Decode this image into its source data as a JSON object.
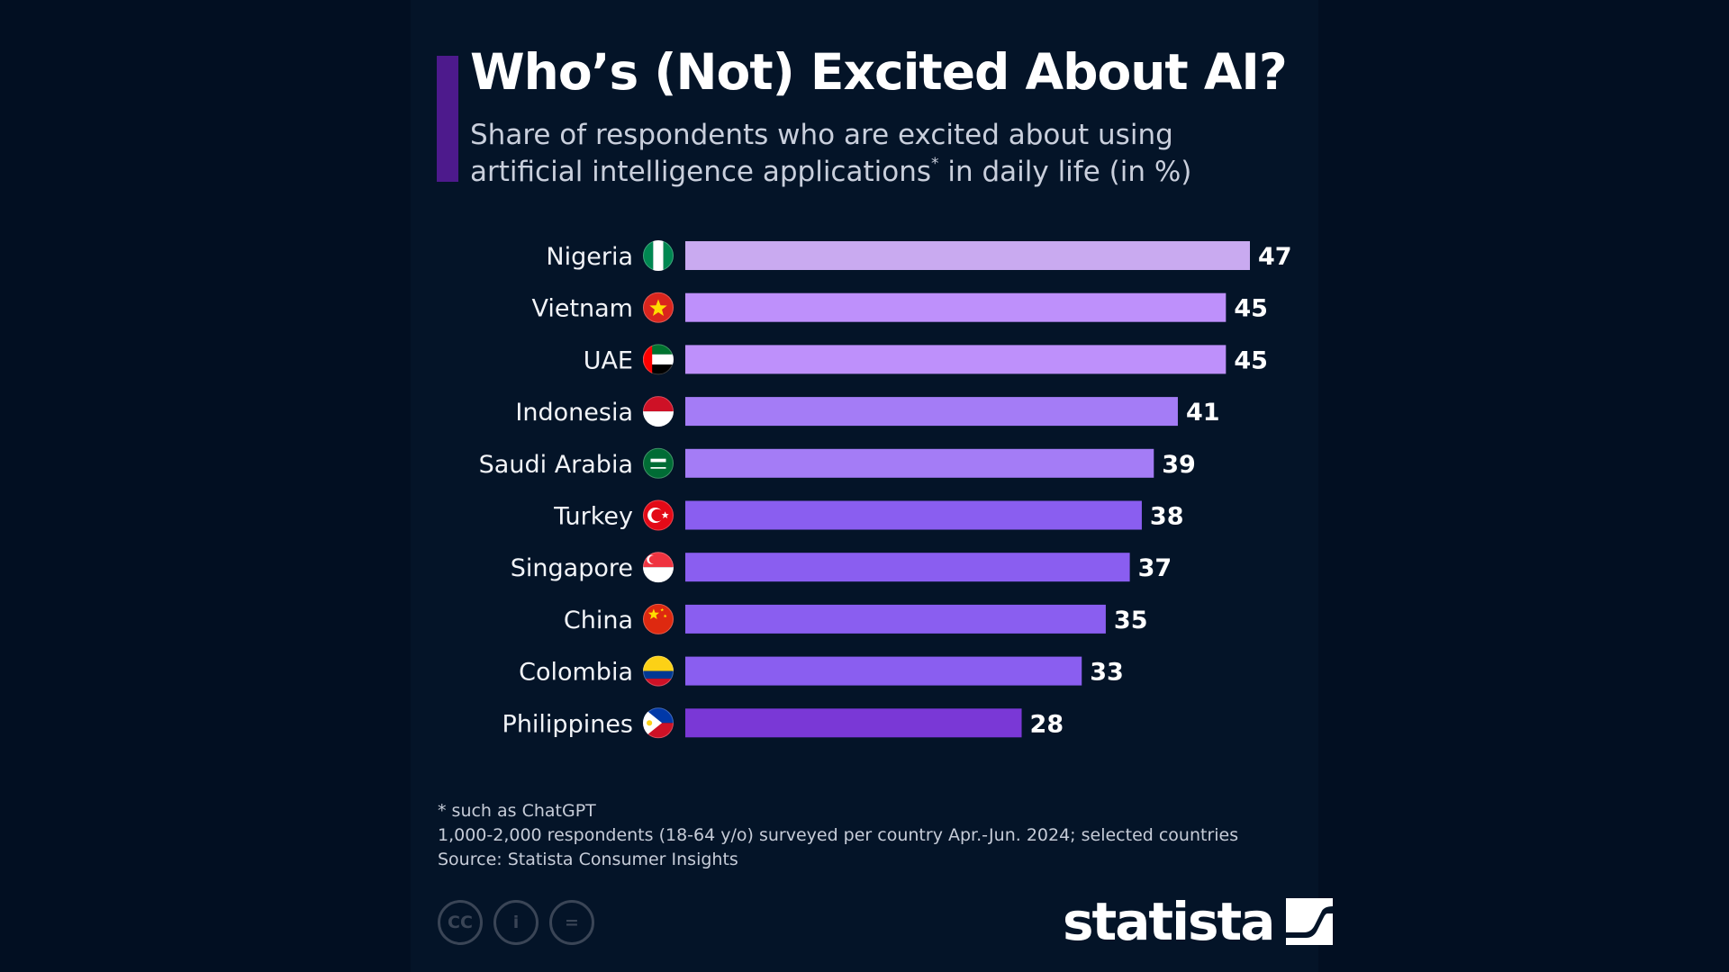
{
  "title": "Who’s (Not) Excited About AI?",
  "subtitle": {
    "line1": "Share of respondents who are excited about using",
    "line2_pre": "artificial intelligence applications",
    "line2_sup": "*",
    "line2_post": " in daily life (in %)"
  },
  "chart_data": {
    "type": "bar",
    "orientation": "horizontal",
    "title": "Who’s (Not) Excited About AI?",
    "xlabel": "",
    "ylabel": "",
    "unit": "%",
    "categories": [
      "Nigeria",
      "Vietnam",
      "UAE",
      "Indonesia",
      "Saudi Arabia",
      "Turkey",
      "Singapore",
      "China",
      "Colombia",
      "Philippines"
    ],
    "values": [
      47,
      45,
      45,
      41,
      39,
      38,
      37,
      35,
      33,
      28
    ],
    "bar_colors": [
      "#c9aaf0",
      "#be90fb",
      "#be90fb",
      "#a47cf6",
      "#a47cf6",
      "#8a5ef0",
      "#8a5ef0",
      "#8a5ef0",
      "#8a5ef0",
      "#7a38d6"
    ],
    "flags": [
      "nigeria-flag-icon",
      "vietnam-flag-icon",
      "uae-flag-icon",
      "indonesia-flag-icon",
      "saudi-arabia-flag-icon",
      "turkey-flag-icon",
      "singapore-flag-icon",
      "china-flag-icon",
      "colombia-flag-icon",
      "philippines-flag-icon"
    ],
    "xlim": [
      0,
      47
    ],
    "grid": false,
    "legend": "none"
  },
  "notes": {
    "footnote": "* such as ChatGPT",
    "method": "1,000-2,000 respondents (18-64 y/o) surveyed per country Apr.-Jun. 2024; selected countries",
    "source": "Source: Statista Consumer Insights"
  },
  "license_icons": [
    "cc-icon",
    "attribution-icon",
    "no-derivatives-icon"
  ],
  "license_labels": [
    "CC",
    "i",
    "="
  ],
  "brand": "statista",
  "colors": {
    "background": "#020f22",
    "card": "#041428",
    "accent": "#4d1a8c"
  }
}
